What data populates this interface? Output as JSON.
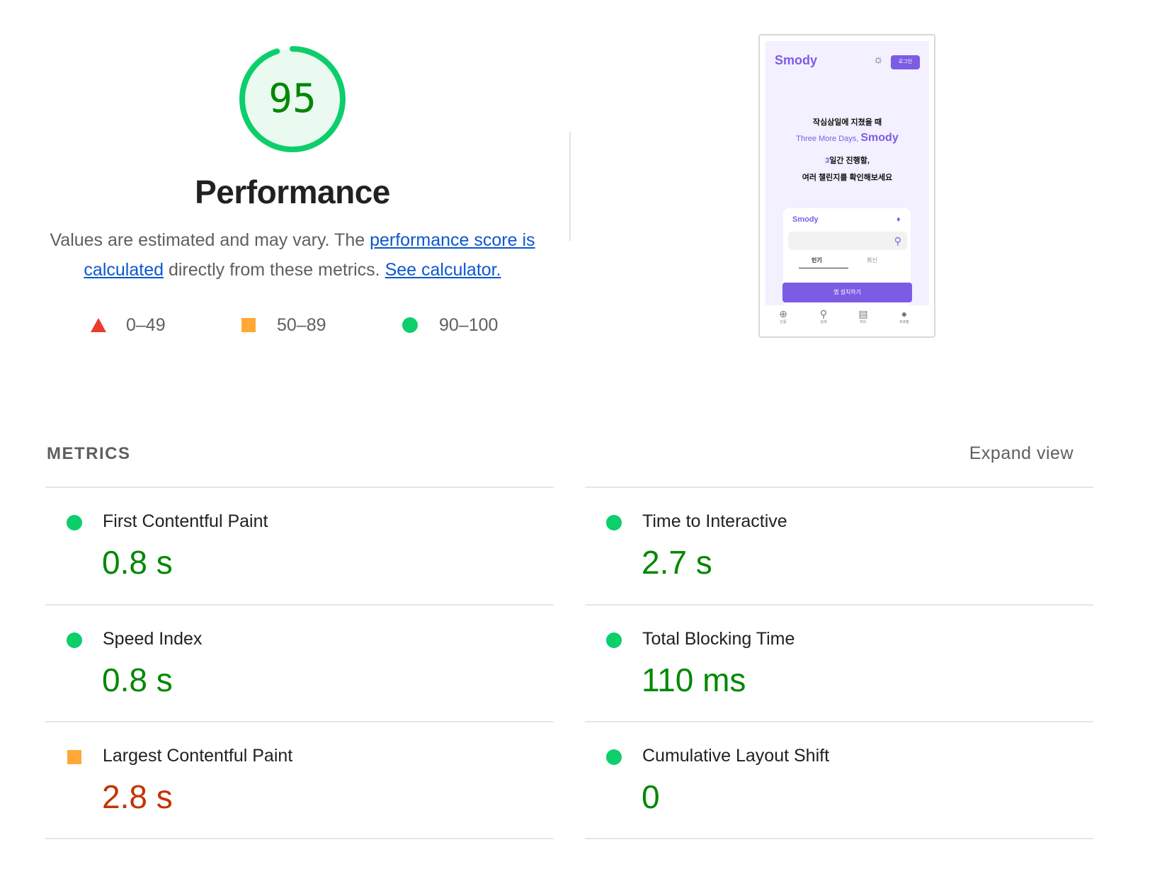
{
  "score": {
    "value": "95",
    "fraction": 0.95,
    "color": "#0cce6b",
    "category_title": "Performance"
  },
  "description": {
    "text_before": "Values are estimated and may vary. The ",
    "link_score": "performance score is calculated",
    "text_middle": " directly from these metrics. ",
    "link_calculator": "See calculator."
  },
  "legend": [
    {
      "range": "0–49",
      "shape": "triangle",
      "color": "#eb3a2f"
    },
    {
      "range": "50–89",
      "shape": "square",
      "color": "#ffa836"
    },
    {
      "range": "90–100",
      "shape": "circle",
      "color": "#0cce6b"
    }
  ],
  "thumbnail": {
    "logo": "Smody",
    "login_button": "로그인",
    "hero_line1": "작심삼일에 지쳤을 때",
    "hero_line2_prefix": "Three More Days, ",
    "hero_line2_brand": "Smody",
    "hero_line3_num": "3",
    "hero_line3_rest": "일간 진행할,",
    "hero_line4": "여러 챌린지를 확인해보세요",
    "card_logo": "Smody",
    "tab_popular": "인기",
    "tab_latest": "최신",
    "install_button": "앱 설치하기",
    "nav": [
      {
        "label": "인증",
        "icon": "plus-circle-icon"
      },
      {
        "label": "검색",
        "icon": "search-icon"
      },
      {
        "label": "피드",
        "icon": "feed-icon"
      },
      {
        "label": "프로필",
        "icon": "profile-icon"
      }
    ]
  },
  "metrics": {
    "heading": "METRICS",
    "expand_label": "Expand view",
    "left": [
      {
        "title": "First Contentful Paint",
        "value": "0.8 s",
        "rating": "pass"
      },
      {
        "title": "Speed Index",
        "value": "0.8 s",
        "rating": "pass"
      },
      {
        "title": "Largest Contentful Paint",
        "value": "2.8 s",
        "rating": "average"
      }
    ],
    "right": [
      {
        "title": "Time to Interactive",
        "value": "2.7 s",
        "rating": "pass"
      },
      {
        "title": "Total Blocking Time",
        "value": "110 ms",
        "rating": "pass"
      },
      {
        "title": "Cumulative Layout Shift",
        "value": "0",
        "rating": "pass"
      }
    ]
  },
  "colors": {
    "pass_text": "#008800",
    "average_text": "#c33300",
    "link": "#0b57d0",
    "brand_purple": "#7c5ce5"
  }
}
